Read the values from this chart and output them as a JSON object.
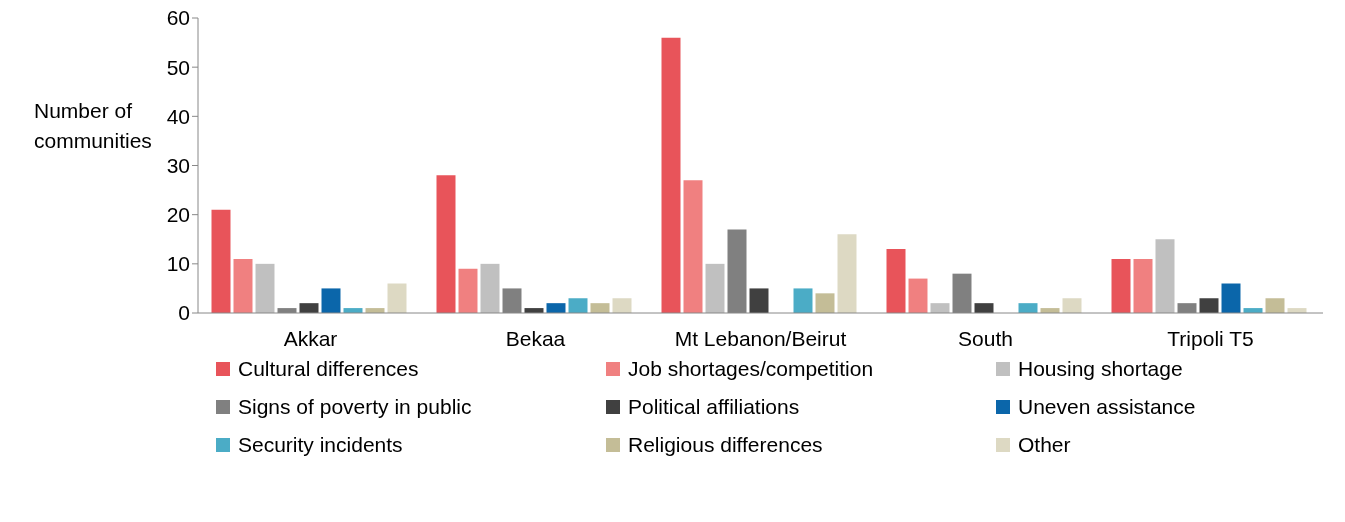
{
  "chart_data": {
    "type": "bar",
    "ylabel": "Number of communities",
    "categories": [
      "Akkar",
      "Bekaa",
      "Mt Lebanon/Beirut",
      "South",
      "Tripoli T5"
    ],
    "ylim": [
      0,
      60
    ],
    "yticks": [
      0,
      10,
      20,
      30,
      40,
      50,
      60
    ],
    "grid": false,
    "legend": "bottom",
    "series": [
      {
        "name": "Cultural differences",
        "color": "#e8545a",
        "values": [
          21,
          28,
          56,
          13,
          11
        ]
      },
      {
        "name": "Job shortages/competition",
        "color": "#f08080",
        "values": [
          11,
          9,
          27,
          7,
          11
        ]
      },
      {
        "name": "Housing shortage",
        "color": "#c0c0c0",
        "values": [
          10,
          10,
          10,
          2,
          15
        ]
      },
      {
        "name": "Signs of poverty in public",
        "color": "#808080",
        "values": [
          1,
          5,
          17,
          8,
          2
        ]
      },
      {
        "name": "Political affiliations",
        "color": "#404040",
        "values": [
          2,
          1,
          5,
          2,
          3
        ]
      },
      {
        "name": "Uneven assistance",
        "color": "#0b66aa",
        "values": [
          5,
          2,
          0,
          0,
          6
        ]
      },
      {
        "name": "Security incidents",
        "color": "#4bacc6",
        "values": [
          1,
          3,
          5,
          2,
          1
        ]
      },
      {
        "name": "Religious differences",
        "color": "#c4bd97",
        "values": [
          1,
          2,
          4,
          1,
          3
        ]
      },
      {
        "name": "Other",
        "color": "#ddd9c3",
        "values": [
          6,
          3,
          16,
          3,
          1
        ]
      }
    ]
  }
}
